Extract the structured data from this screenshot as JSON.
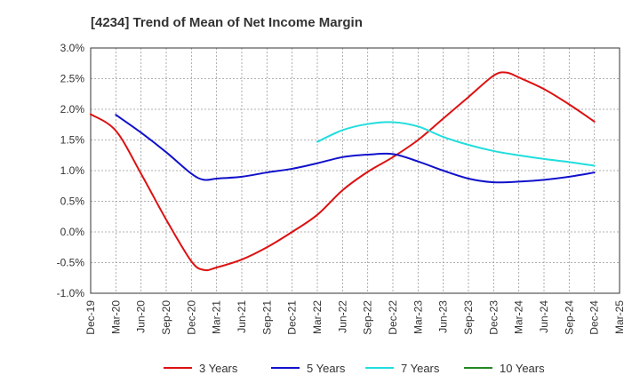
{
  "chart_data": {
    "type": "line",
    "title": "[4234]  Trend of Mean of Net Income Margin",
    "xlabel": "",
    "ylabel": "",
    "ylim": [
      -1.0,
      3.0
    ],
    "y_ticks": [
      "3.0%",
      "2.5%",
      "2.0%",
      "1.5%",
      "1.0%",
      "0.5%",
      "0.0%",
      "-0.5%",
      "-1.0%"
    ],
    "y_tick_values": [
      3.0,
      2.5,
      2.0,
      1.5,
      1.0,
      0.5,
      0.0,
      -0.5,
      -1.0
    ],
    "x_categories": [
      "Dec-19",
      "Mar-20",
      "Jun-20",
      "Sep-20",
      "Dec-20",
      "Mar-21",
      "Jun-21",
      "Sep-21",
      "Dec-21",
      "Mar-22",
      "Jun-22",
      "Sep-22",
      "Dec-22",
      "Mar-23",
      "Jun-23",
      "Sep-23",
      "Dec-23",
      "Mar-24",
      "Jun-24",
      "Sep-24",
      "Dec-24",
      "Mar-25"
    ],
    "grid": true,
    "legend_position": "bottom",
    "series": [
      {
        "name": "3 Years",
        "color": "#dd1111",
        "points": [
          [
            0,
            1.92
          ],
          [
            1,
            1.65
          ],
          [
            2,
            0.95
          ],
          [
            3,
            0.2
          ],
          [
            4,
            -0.48
          ],
          [
            4.5,
            -0.62
          ],
          [
            5,
            -0.58
          ],
          [
            6,
            -0.45
          ],
          [
            7,
            -0.25
          ],
          [
            8,
            0.0
          ],
          [
            9,
            0.28
          ],
          [
            10,
            0.68
          ],
          [
            11,
            0.98
          ],
          [
            12,
            1.22
          ],
          [
            13,
            1.5
          ],
          [
            14,
            1.85
          ],
          [
            15,
            2.2
          ],
          [
            16,
            2.55
          ],
          [
            16.5,
            2.6
          ],
          [
            17,
            2.52
          ],
          [
            18,
            2.33
          ],
          [
            19,
            2.08
          ],
          [
            20,
            1.8
          ]
        ]
      },
      {
        "name": "5 Years",
        "color": "#1111cc",
        "points": [
          [
            1,
            1.91
          ],
          [
            2,
            1.62
          ],
          [
            3,
            1.3
          ],
          [
            4,
            0.95
          ],
          [
            4.5,
            0.85
          ],
          [
            5,
            0.87
          ],
          [
            6,
            0.9
          ],
          [
            7,
            0.97
          ],
          [
            8,
            1.03
          ],
          [
            9,
            1.12
          ],
          [
            10,
            1.22
          ],
          [
            11,
            1.26
          ],
          [
            12,
            1.27
          ],
          [
            13,
            1.15
          ],
          [
            14,
            1.0
          ],
          [
            15,
            0.87
          ],
          [
            16,
            0.81
          ],
          [
            17,
            0.82
          ],
          [
            18,
            0.85
          ],
          [
            19,
            0.9
          ],
          [
            20,
            0.97
          ]
        ]
      },
      {
        "name": "7 Years",
        "color": "#22dddd",
        "points": [
          [
            9,
            1.47
          ],
          [
            10,
            1.66
          ],
          [
            11,
            1.76
          ],
          [
            12,
            1.79
          ],
          [
            13,
            1.72
          ],
          [
            14,
            1.55
          ],
          [
            15,
            1.42
          ],
          [
            16,
            1.32
          ],
          [
            17,
            1.25
          ],
          [
            18,
            1.19
          ],
          [
            19,
            1.14
          ],
          [
            20,
            1.08
          ]
        ]
      },
      {
        "name": "10 Years",
        "color": "#228822",
        "points": []
      }
    ]
  }
}
